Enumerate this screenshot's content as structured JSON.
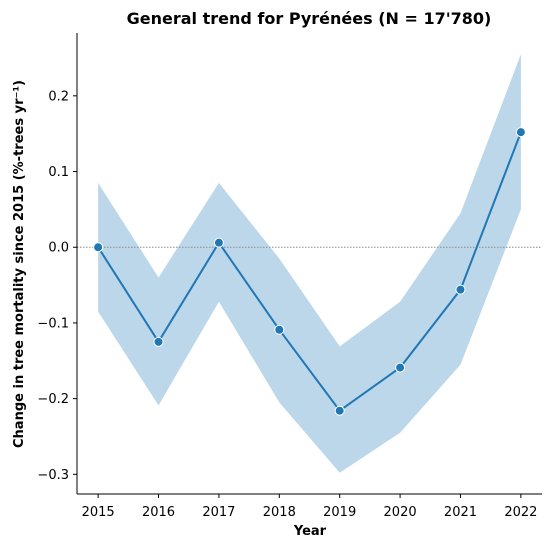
{
  "chart_data": {
    "type": "line",
    "title": "General trend for Pyrénées  (N = 17'780)",
    "xlabel": "Year",
    "ylabel": "Change in tree mortality since 2015 (%-trees yr⁻¹)",
    "x": [
      2015,
      2016,
      2017,
      2018,
      2019,
      2020,
      2021,
      2022
    ],
    "series": [
      {
        "values": [
          0.0,
          -0.125,
          0.006,
          -0.109,
          -0.216,
          -0.159,
          -0.056,
          0.152
        ],
        "ci_low": [
          -0.085,
          -0.209,
          -0.072,
          -0.205,
          -0.298,
          -0.245,
          -0.155,
          0.05
        ],
        "ci_high": [
          0.085,
          -0.04,
          0.085,
          -0.015,
          -0.131,
          -0.072,
          0.045,
          0.255
        ]
      }
    ],
    "xticks": [
      "2015",
      "2016",
      "2017",
      "2018",
      "2019",
      "2020",
      "2021",
      "2022"
    ],
    "yticks": [
      0.2,
      0.1,
      0.0,
      -0.1,
      -0.2,
      -0.3
    ],
    "ytick_labels": [
      "0.2",
      "0.1",
      "0.0",
      "−0.1",
      "−0.2",
      "−0.3"
    ],
    "xlim": [
      2014.65,
      2022.35
    ],
    "ylim": [
      -0.326,
      0.283
    ],
    "reference_line": 0.0,
    "grid": false,
    "colors": {
      "line": "#1f77b4",
      "band": "#bcd7ea",
      "reference": "#8c8c8c"
    }
  }
}
